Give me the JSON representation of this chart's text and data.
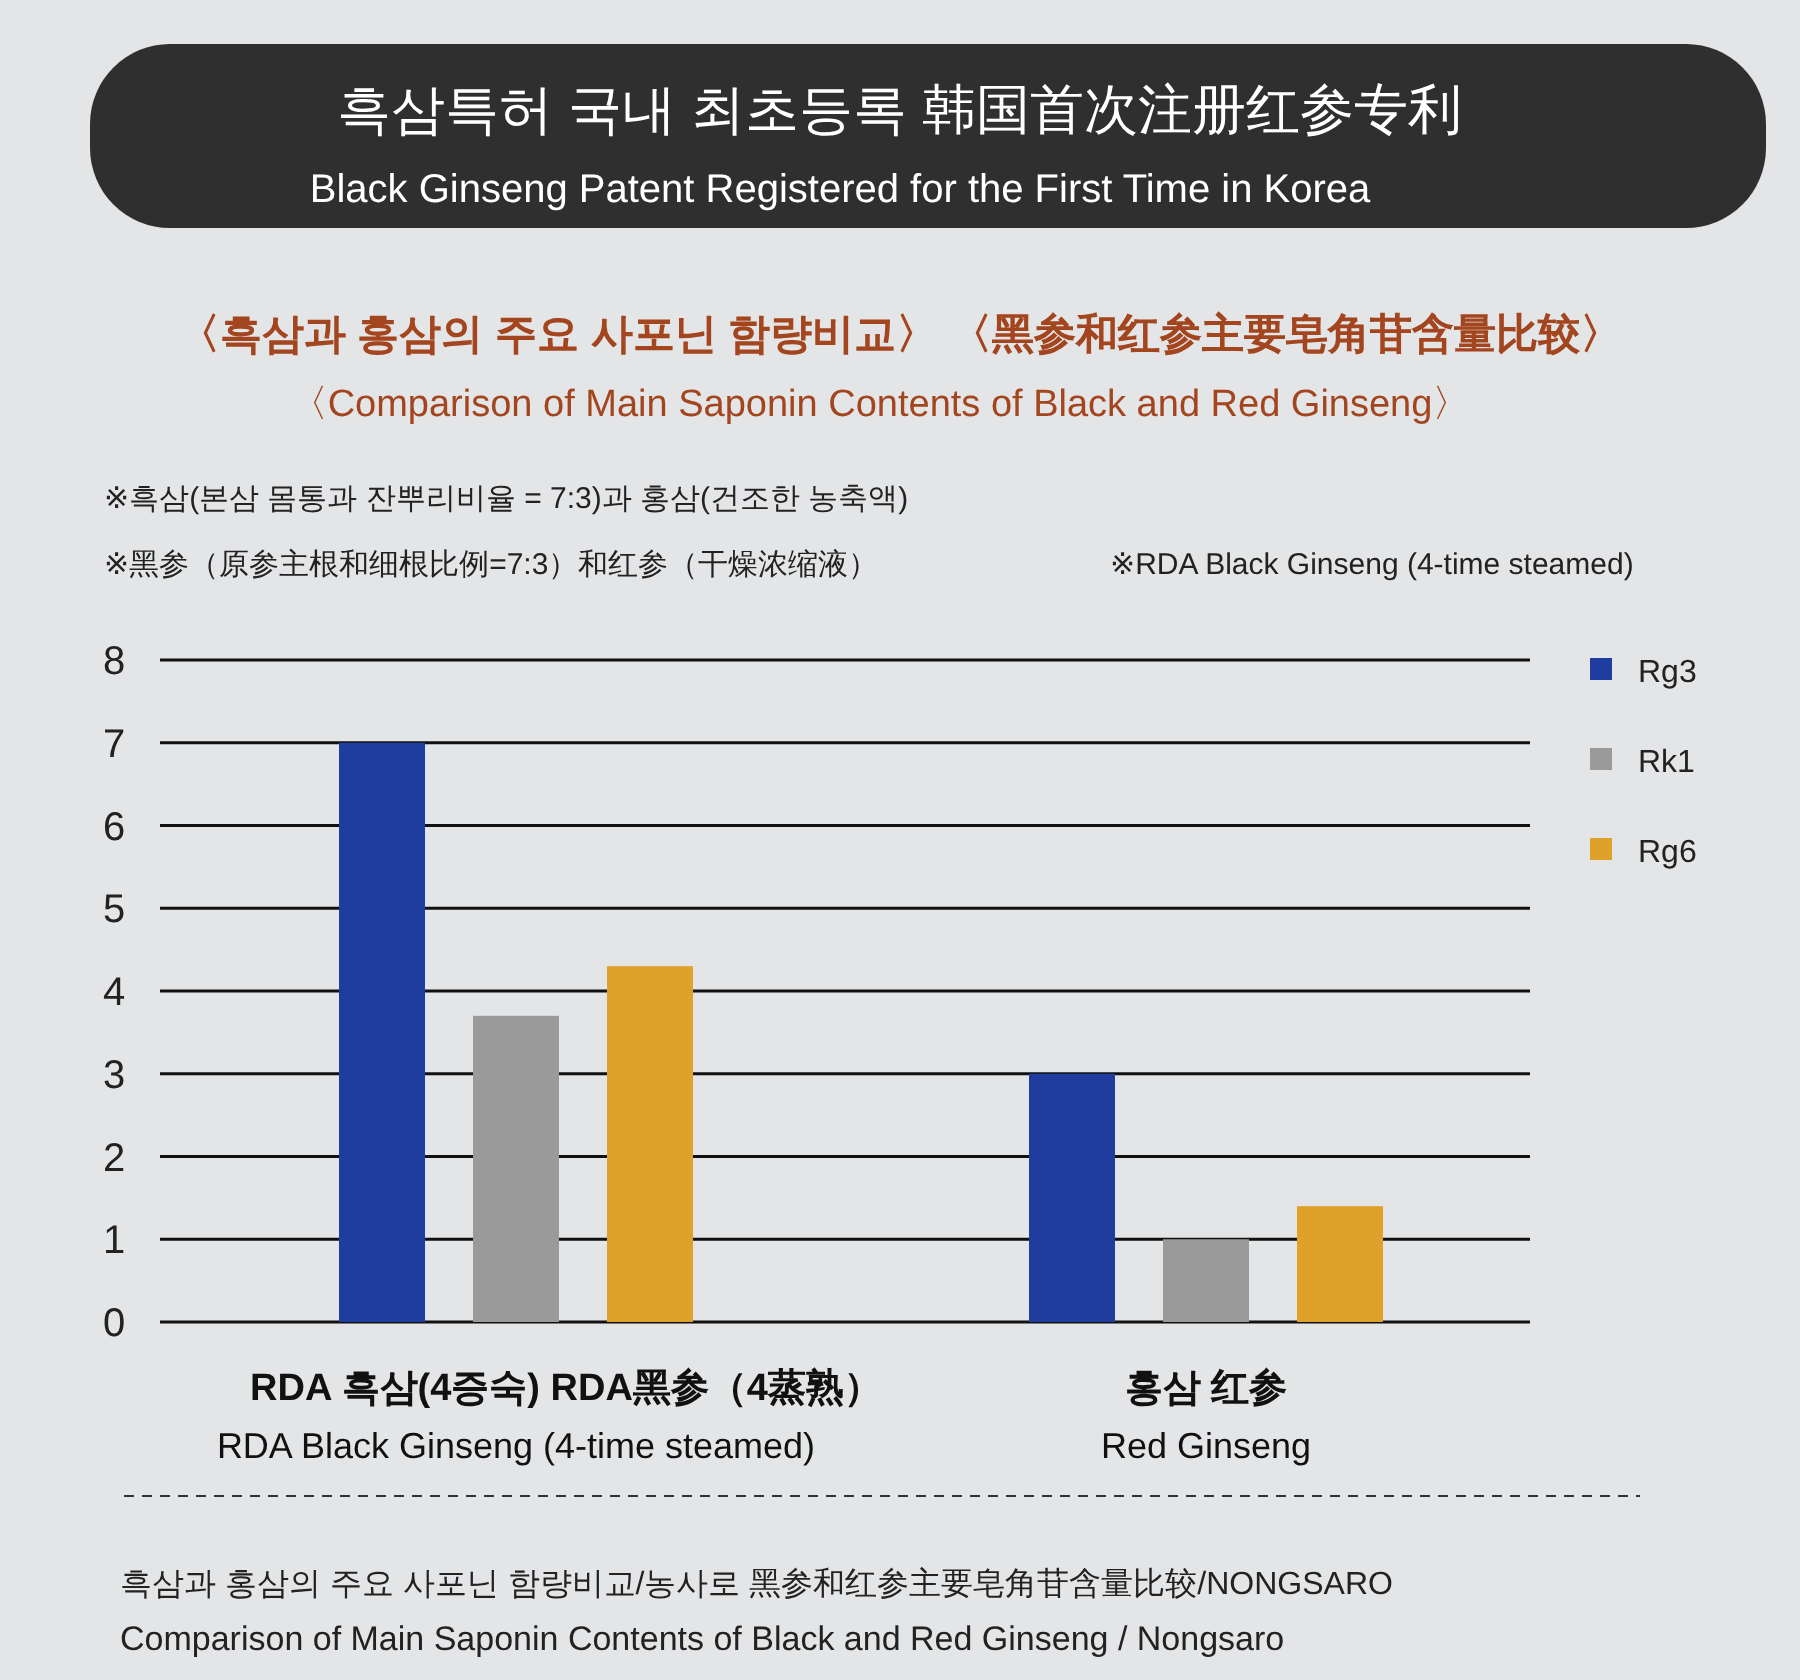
{
  "chart_data": {
    "type": "bar",
    "title": "〈흑삼과 홍삼의 주요 사포닌 함량비교〉 〈黑参和红参主要皂角苷含量比较〉",
    "subtitle": "〈Comparison of Main Saponin Contents of Black and Red Ginseng〉",
    "annotations": [
      "흑삼특허 국내 최초등록   韩国首次注册红参专利",
      "Black Ginseng Patent Registered for the First Time in Korea",
      "※흑삼(본삼 몸통과 잔뿌리비율 = 7:3)과 홍삼(건조한 농축액)",
      "※黑参（原参主根和细根比例=7:3）和红参（干燥浓缩液）",
      "※RDA Black Ginseng (4-time steamed)",
      "흑삼과 홍삼의 주요 사포닌 함량비교/농사로   黑参和红参主要皂角苷含量比较/NONGSARO",
      "Comparison of Main Saponin Contents of Black and Red Ginseng / Nongsaro"
    ],
    "categories": [
      "RDA 흑삼(4증숙)  RDA黑参（4蒸熟）\nRDA Black Ginseng (4-time steamed)",
      "홍삼  红参\nRed Ginseng"
    ],
    "series": [
      {
        "name": "Rg3",
        "color": "#1f3d9e",
        "values": [
          7.0,
          3.0
        ]
      },
      {
        "name": "Rk1",
        "color": "#9a9a9a",
        "values": [
          3.7,
          1.0
        ]
      },
      {
        "name": "Rg6",
        "color": "#e0a12a",
        "values": [
          4.3,
          1.4
        ]
      }
    ],
    "ylim": [
      0,
      8
    ],
    "yticks": [
      0,
      1,
      2,
      3,
      4,
      5,
      6,
      7,
      8
    ],
    "grid": "y",
    "legend": "top right"
  }
}
